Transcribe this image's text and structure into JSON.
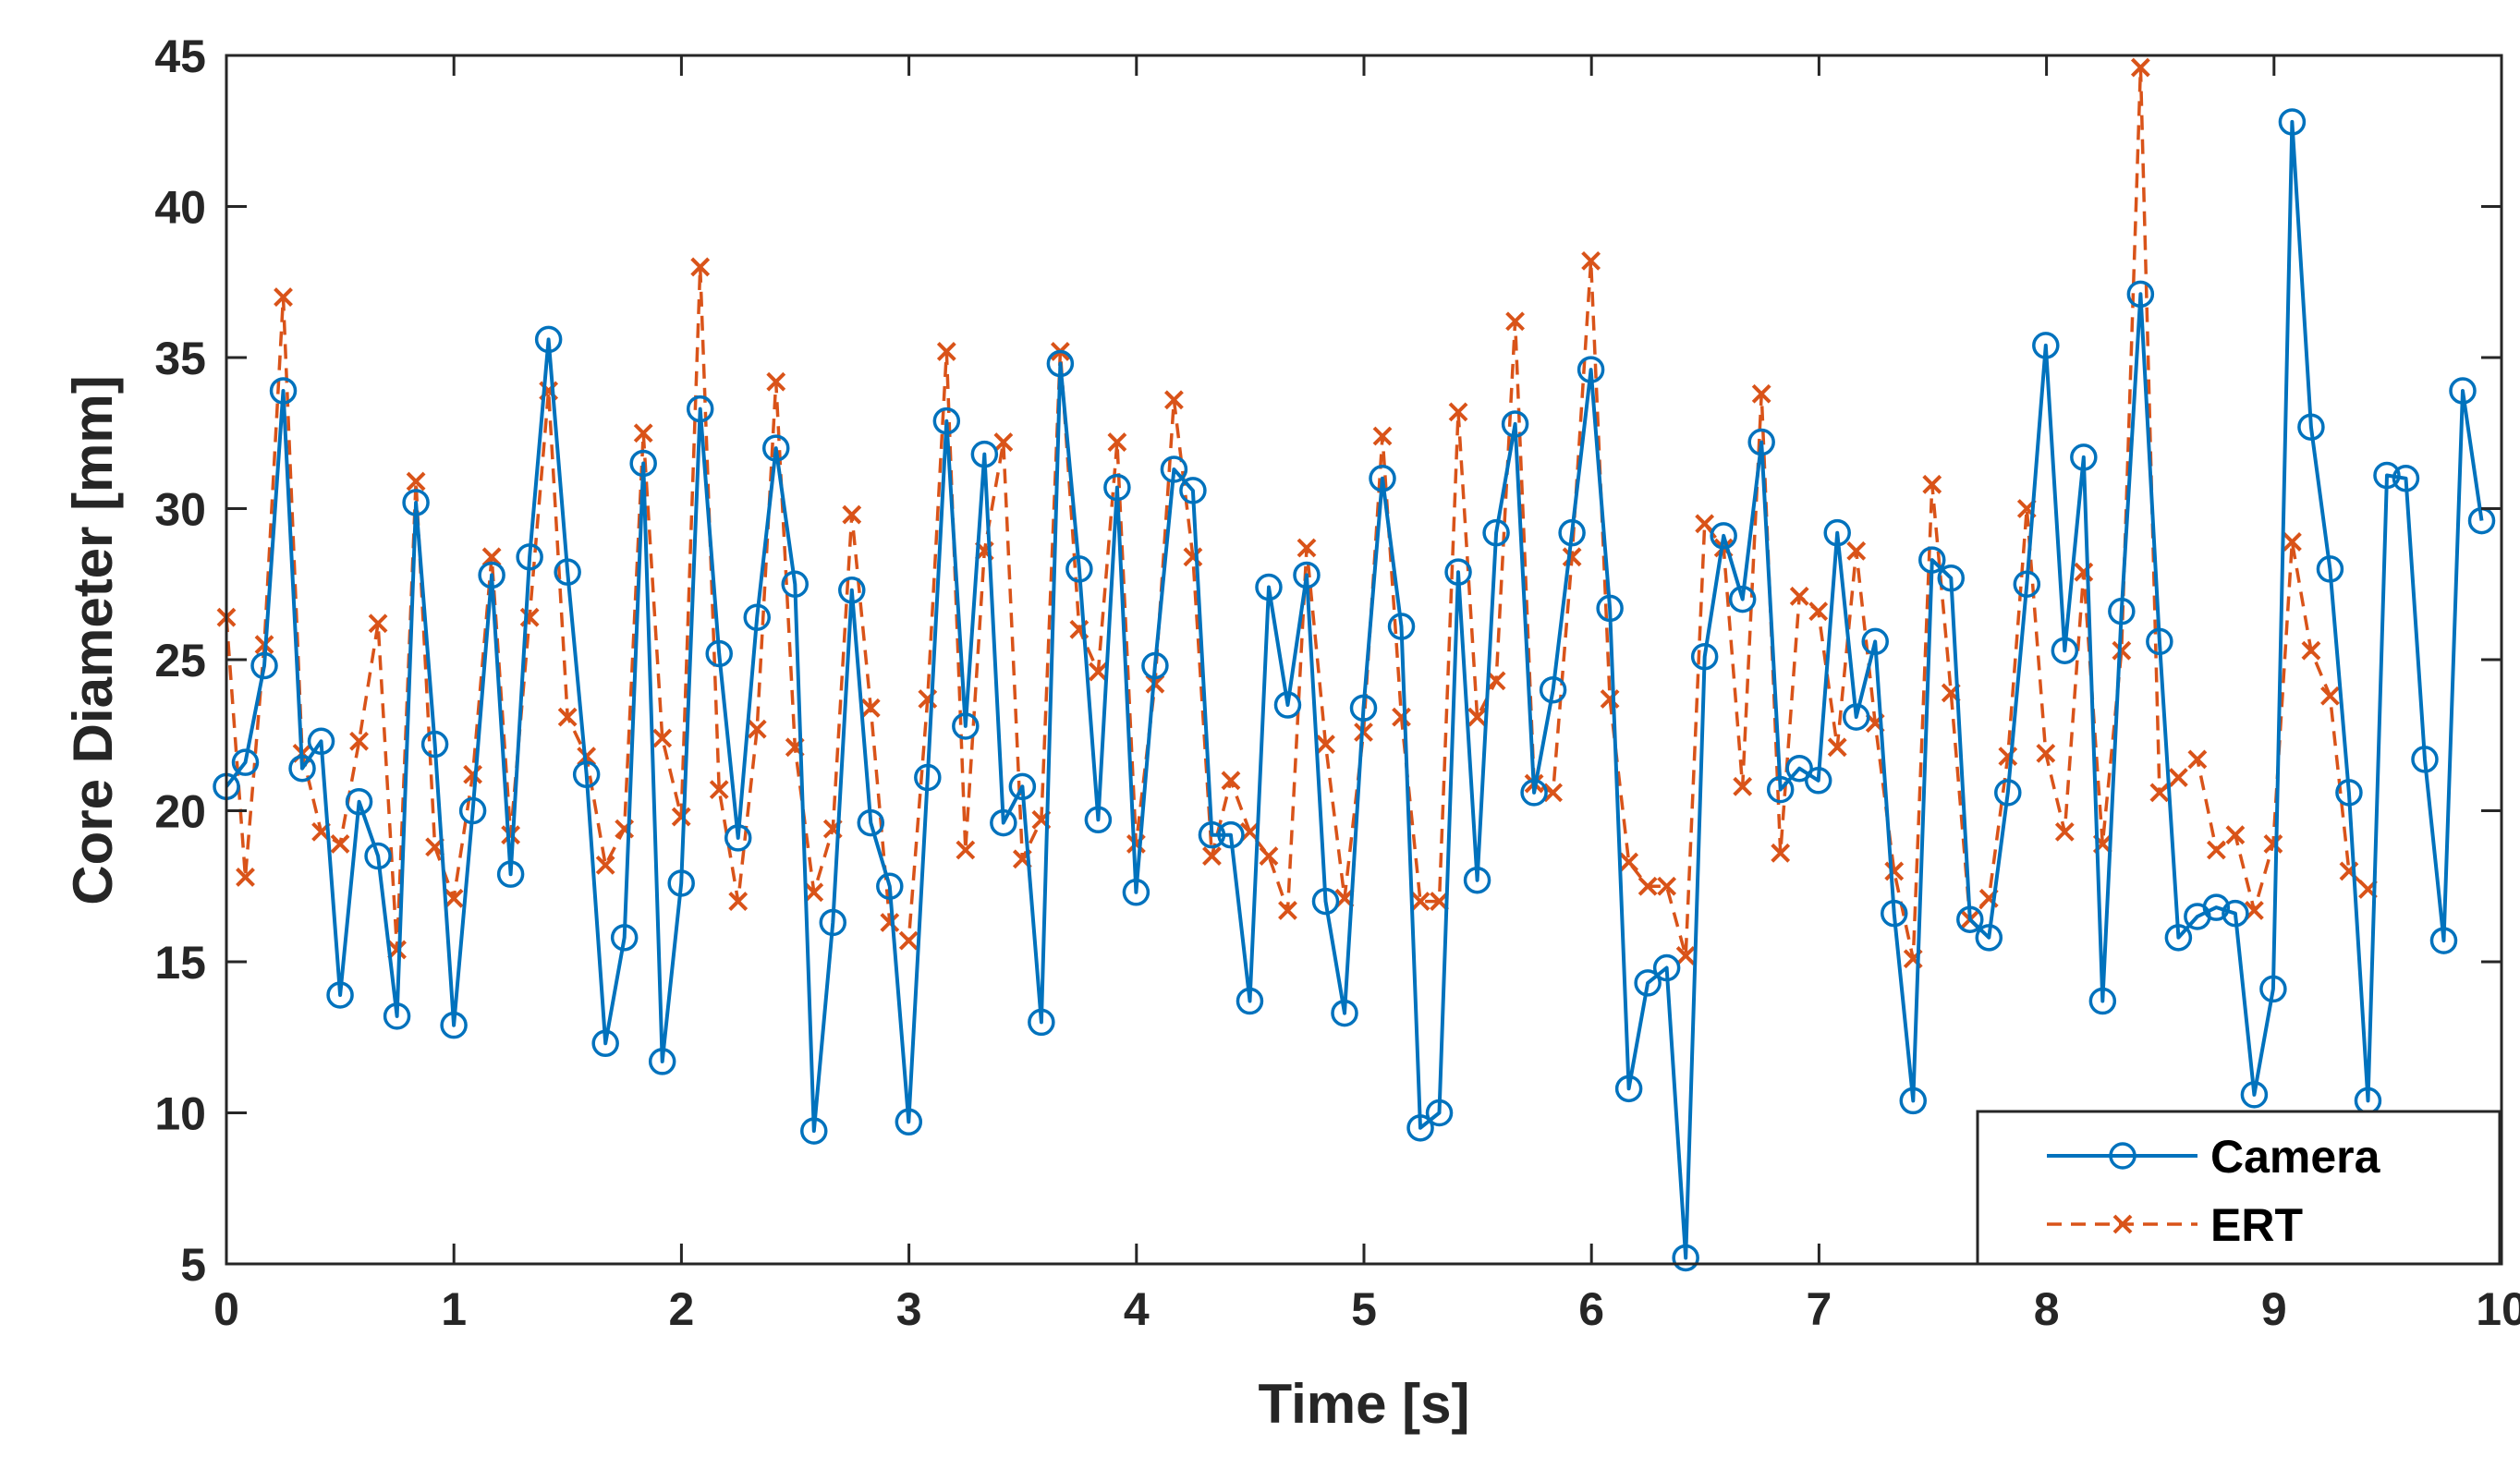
{
  "chart_data": {
    "type": "line",
    "title": "",
    "xlabel": "Time [s]",
    "ylabel": "Core Diameter [mm]",
    "xlim": [
      0,
      10
    ],
    "ylim": [
      5,
      45
    ],
    "xticks": [
      "0",
      "1",
      "2",
      "3",
      "4",
      "5",
      "6",
      "7",
      "8",
      "9",
      "10"
    ],
    "yticks": [
      "5",
      "10",
      "15",
      "20",
      "25",
      "30",
      "35",
      "40",
      "45"
    ],
    "grid": false,
    "legend_position": "bottom-right",
    "x_step": 0.0833,
    "series": [
      {
        "name": "Camera",
        "color": "#0072BD",
        "line_style": "solid",
        "marker": "circle",
        "values": [
          20.8,
          21.6,
          24.8,
          33.9,
          21.4,
          22.3,
          13.9,
          20.3,
          18.5,
          13.2,
          30.2,
          22.2,
          12.9,
          20.0,
          27.8,
          17.9,
          28.4,
          35.6,
          27.9,
          21.2,
          12.3,
          15.8,
          31.5,
          11.7,
          17.6,
          33.3,
          25.2,
          19.1,
          26.4,
          32.0,
          27.5,
          9.4,
          16.3,
          27.3,
          19.6,
          17.5,
          9.7,
          21.1,
          32.9,
          22.8,
          31.8,
          19.6,
          20.8,
          13.0,
          34.8,
          28.0,
          19.7,
          30.7,
          17.3,
          24.8,
          31.3,
          30.6,
          19.2,
          19.2,
          13.7,
          27.4,
          23.5,
          27.8,
          17.0,
          13.3,
          23.4,
          31.0,
          26.1,
          9.5,
          10.0,
          27.9,
          17.7,
          29.2,
          32.8,
          20.6,
          24.0,
          29.2,
          34.6,
          26.7,
          10.8,
          14.3,
          14.8,
          5.2,
          25.1,
          29.1,
          27.0,
          32.2,
          20.7,
          21.4,
          21.0,
          29.2,
          23.1,
          25.6,
          16.6,
          10.4,
          28.3,
          27.7,
          16.4,
          15.8,
          20.6,
          27.5,
          35.4,
          25.3,
          31.7,
          13.7,
          26.6,
          37.1,
          25.6,
          15.8,
          16.5,
          16.8,
          16.6,
          10.6,
          14.1,
          42.8,
          32.7,
          28.0,
          20.6,
          10.4,
          31.1,
          31.0,
          21.7,
          15.7,
          33.9,
          29.6
        ]
      },
      {
        "name": "ERT",
        "color": "#D95319",
        "line_style": "dashed",
        "marker": "x",
        "values": [
          26.4,
          17.8,
          25.5,
          37.0,
          21.9,
          19.3,
          18.9,
          22.3,
          26.2,
          15.4,
          30.9,
          18.8,
          17.1,
          21.2,
          28.4,
          19.2,
          26.4,
          33.9,
          23.1,
          21.8,
          18.2,
          19.4,
          32.5,
          22.4,
          19.8,
          38.0,
          20.7,
          17.0,
          22.7,
          34.2,
          22.1,
          17.3,
          19.4,
          29.8,
          23.4,
          16.3,
          15.7,
          23.7,
          35.2,
          18.7,
          28.6,
          32.2,
          18.4,
          19.7,
          35.2,
          26.0,
          24.6,
          32.2,
          18.9,
          24.2,
          33.6,
          28.4,
          18.5,
          21.0,
          19.3,
          18.5,
          16.7,
          28.7,
          22.2,
          17.1,
          22.6,
          32.4,
          23.1,
          17.0,
          17.0,
          33.2,
          23.1,
          24.3,
          36.2,
          20.9,
          20.6,
          28.4,
          38.2,
          23.7,
          18.3,
          17.5,
          17.5,
          15.2,
          29.5,
          28.7,
          20.8,
          33.8,
          18.6,
          27.1,
          26.6,
          22.1,
          28.6,
          22.9,
          18.0,
          15.1,
          30.8,
          23.9,
          16.4,
          17.1,
          21.8,
          30.0,
          21.9,
          19.3,
          27.9,
          18.9,
          25.3,
          44.6,
          20.6,
          21.1,
          21.7,
          18.7,
          19.2,
          16.7,
          18.9,
          28.9,
          25.3,
          23.8,
          18.0,
          17.4
        ]
      }
    ]
  }
}
